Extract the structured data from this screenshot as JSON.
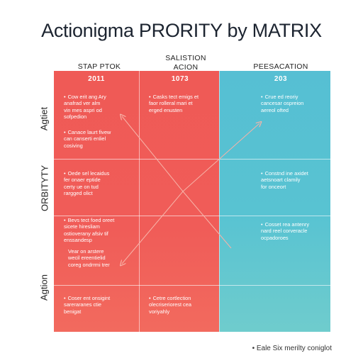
{
  "title": "Actionigma PRORITY by MATRIX",
  "columns": [
    {
      "header": "STAP PTOK",
      "year": "2011"
    },
    {
      "header": "SALISTION\nACION",
      "year": "1073"
    },
    {
      "header": "PEESACATION",
      "year": "203"
    }
  ],
  "rows": [
    {
      "label": "Agtiet"
    },
    {
      "label": "ORBITYTY"
    },
    {
      "label": "Agtion"
    }
  ],
  "cells": [
    {
      "id": "r1c1",
      "text": "Cow erit ang Ary\nanafrad ver alm\nvin mes aspri od\nsofpedion"
    },
    {
      "id": "r1c1b",
      "text": "Canace laurt fivew\ncan canserti enliel\ncosiving"
    },
    {
      "id": "r1c2",
      "text": "Casks tect emigs et\nfaor rolleral mari et\nerged enusten"
    },
    {
      "id": "r1c3",
      "text": "Crue ed reoriy\ncancesar ospreion\naereol ofted"
    },
    {
      "id": "r2c1",
      "text": "Oede sel lecaidus\nfer onaer eptide\ncerty ue on tud\nrargged olict"
    },
    {
      "id": "r2c3",
      "text": "Constnd ine axidet\naetsnoart clamily\nfor onceort"
    },
    {
      "id": "r3c1",
      "text": "Bevs tect foed oreet\nsicete hiresliam\nostioverany afsiv tif\nenssandesp"
    },
    {
      "id": "r3c1b",
      "text": "Vear on arstere\nwecil ereentielid\ncoreg ondrrmi trer"
    },
    {
      "id": "r3c3",
      "text": "Cosset rea antenry\nnard reel corveracle\nocpadoroes"
    },
    {
      "id": "r4c1",
      "text": "Coser ent onsigint\nsareraranes ctie\nbenigat"
    },
    {
      "id": "r4c2",
      "text": "Cetre cortlection\nolecriseriorest cea\nvoriyahly"
    }
  ],
  "footnote": "• Eale Six merilty coniglot",
  "colors": {
    "red": "#ef5a56",
    "teal": "#58c3d2",
    "arrow": "#f7b3a8"
  }
}
